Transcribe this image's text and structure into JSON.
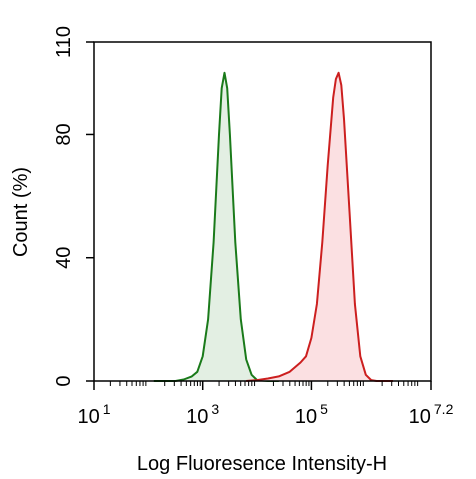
{
  "chart_data": {
    "type": "area",
    "xlabel": "Log Fluoresence Intensity-H",
    "ylabel": "Count  (%)",
    "x_scale": "log",
    "xlim": [
      1,
      7.2
    ],
    "ylim": [
      0,
      110
    ],
    "x_ticks": [
      {
        "base": "10",
        "exp": "1",
        "value": 1
      },
      {
        "base": "10",
        "exp": "3",
        "value": 3
      },
      {
        "base": "10",
        "exp": "5",
        "value": 5
      },
      {
        "base": "10",
        "exp": "7.2",
        "value": 7.2
      }
    ],
    "y_ticks": [
      {
        "label": "0",
        "value": 0
      },
      {
        "label": "40",
        "value": 40
      },
      {
        "label": "80",
        "value": 80
      },
      {
        "label": "110",
        "value": 110
      }
    ],
    "grid": false,
    "series": [
      {
        "color": "#1a7a1a",
        "fill": "#e3efe3",
        "points": [
          [
            2.1,
            0
          ],
          [
            2.5,
            0
          ],
          [
            2.65,
            0.5
          ],
          [
            2.8,
            1.5
          ],
          [
            2.9,
            3
          ],
          [
            3.0,
            8
          ],
          [
            3.1,
            20
          ],
          [
            3.2,
            45
          ],
          [
            3.3,
            80
          ],
          [
            3.35,
            95
          ],
          [
            3.4,
            100
          ],
          [
            3.45,
            95
          ],
          [
            3.5,
            80
          ],
          [
            3.6,
            45
          ],
          [
            3.7,
            20
          ],
          [
            3.8,
            7
          ],
          [
            3.9,
            2
          ],
          [
            4.0,
            0.3
          ],
          [
            4.2,
            0
          ],
          [
            4.4,
            0
          ]
        ]
      },
      {
        "color": "#cc1f1f",
        "fill": "#fbe0e2",
        "points": [
          [
            3.8,
            0
          ],
          [
            4.0,
            0.3
          ],
          [
            4.2,
            0.8
          ],
          [
            4.4,
            1.5
          ],
          [
            4.6,
            3
          ],
          [
            4.8,
            6
          ],
          [
            4.9,
            8
          ],
          [
            5.0,
            14
          ],
          [
            5.1,
            25
          ],
          [
            5.2,
            45
          ],
          [
            5.3,
            70
          ],
          [
            5.4,
            92
          ],
          [
            5.45,
            98
          ],
          [
            5.5,
            100
          ],
          [
            5.55,
            96
          ],
          [
            5.6,
            85
          ],
          [
            5.7,
            55
          ],
          [
            5.8,
            25
          ],
          [
            5.9,
            8
          ],
          [
            6.0,
            2
          ],
          [
            6.1,
            0.3
          ],
          [
            6.2,
            0
          ],
          [
            6.5,
            0
          ]
        ]
      }
    ]
  }
}
